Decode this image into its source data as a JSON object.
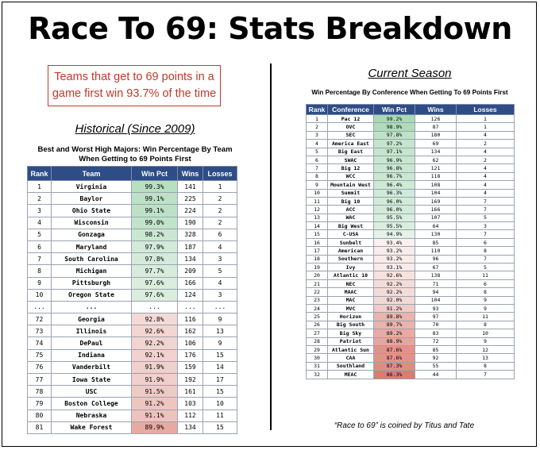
{
  "title": "Race To 69: Stats Breakdown",
  "callout": "Teams that get to 69 points in a game first win 93.7% of the time",
  "historical": {
    "heading": "Historical (Since 2009)",
    "table_title": "Best and Worst High Majors: Win Percentage By Team When Getting to 69 Points First",
    "headers": [
      "Rank",
      "Team",
      "Win Pct",
      "Wins",
      "Losses"
    ],
    "rows": [
      [
        "1",
        "Virginia",
        "99.3%",
        "141",
        "1"
      ],
      [
        "2",
        "Baylor",
        "99.1%",
        "225",
        "2"
      ],
      [
        "3",
        "Ohio State",
        "99.1%",
        "224",
        "2"
      ],
      [
        "4",
        "Wisconsin",
        "99.0%",
        "190",
        "2"
      ],
      [
        "5",
        "Gonzaga",
        "98.2%",
        "328",
        "6"
      ],
      [
        "6",
        "Maryland",
        "97.9%",
        "187",
        "4"
      ],
      [
        "7",
        "South Carolina",
        "97.8%",
        "134",
        "3"
      ],
      [
        "8",
        "Michigan",
        "97.7%",
        "209",
        "5"
      ],
      [
        "9",
        "Pittsburgh",
        "97.6%",
        "166",
        "4"
      ],
      [
        "10",
        "Oregon State",
        "97.6%",
        "124",
        "3"
      ],
      [
        "...",
        "...",
        "...",
        "...",
        "..."
      ],
      [
        "72",
        "Georgia",
        "92.8%",
        "116",
        "9"
      ],
      [
        "73",
        "Illinois",
        "92.6%",
        "162",
        "13"
      ],
      [
        "74",
        "DePaul",
        "92.2%",
        "106",
        "9"
      ],
      [
        "75",
        "Indiana",
        "92.1%",
        "176",
        "15"
      ],
      [
        "76",
        "Vanderbilt",
        "91.9%",
        "159",
        "14"
      ],
      [
        "77",
        "Iowa State",
        "91.9%",
        "192",
        "17"
      ],
      [
        "78",
        "USC",
        "91.5%",
        "161",
        "15"
      ],
      [
        "79",
        "Boston College",
        "91.2%",
        "103",
        "10"
      ],
      [
        "80",
        "Nebraska",
        "91.1%",
        "112",
        "11"
      ],
      [
        "81",
        "Wake Forest",
        "89.9%",
        "134",
        "15"
      ]
    ],
    "pct_colors": [
      "#b7dfc1",
      "#bde1c6",
      "#bde1c6",
      "#c1e3c9",
      "#cae7d1",
      "#d3ead8",
      "#d5ebda",
      "#d8ecdc",
      "#dbeede",
      "#dbeede",
      "#ffffff",
      "#f4dad7",
      "#f3d6d2",
      "#f2d3cf",
      "#f2d2ce",
      "#f1cfcb",
      "#f1cfcb",
      "#efcac5",
      "#eec6c0",
      "#edc3bd",
      "#e8a9a1"
    ]
  },
  "current": {
    "heading": "Current Season",
    "table_title": "Win Percentage By Conference When Getting To 69 Points First",
    "headers": [
      "Rank",
      "Conference",
      "Win Pct",
      "Wins",
      "Losses"
    ],
    "rows": [
      [
        "1",
        "Pac 12",
        "99.2%",
        "126",
        "1"
      ],
      [
        "2",
        "OVC",
        "98.9%",
        "87",
        "1"
      ],
      [
        "3",
        "SEC",
        "97.8%",
        "180",
        "4"
      ],
      [
        "4",
        "America East",
        "97.2%",
        "69",
        "2"
      ],
      [
        "5",
        "Big East",
        "97.1%",
        "134",
        "4"
      ],
      [
        "6",
        "SWAC",
        "96.9%",
        "62",
        "2"
      ],
      [
        "7",
        "Big 12",
        "96.8%",
        "121",
        "4"
      ],
      [
        "8",
        "WCC",
        "96.7%",
        "118",
        "4"
      ],
      [
        "9",
        "Mountain West",
        "96.4%",
        "108",
        "4"
      ],
      [
        "10",
        "Summit",
        "96.3%",
        "104",
        "4"
      ],
      [
        "11",
        "Big 10",
        "96.0%",
        "169",
        "7"
      ],
      [
        "12",
        "ACC",
        "96.0%",
        "166",
        "7"
      ],
      [
        "13",
        "WAC",
        "95.5%",
        "107",
        "5"
      ],
      [
        "14",
        "Big West",
        "95.5%",
        "64",
        "3"
      ],
      [
        "15",
        "C-USA",
        "94.9%",
        "130",
        "7"
      ],
      [
        "16",
        "Sunbelt",
        "93.4%",
        "85",
        "6"
      ],
      [
        "17",
        "American",
        "93.2%",
        "110",
        "8"
      ],
      [
        "18",
        "Southern",
        "93.2%",
        "96",
        "7"
      ],
      [
        "19",
        "Ivy",
        "93.1%",
        "67",
        "5"
      ],
      [
        "20",
        "Atlantic 10",
        "92.6%",
        "138",
        "11"
      ],
      [
        "21",
        "NEC",
        "92.2%",
        "71",
        "6"
      ],
      [
        "22",
        "MAAC",
        "92.2%",
        "94",
        "8"
      ],
      [
        "23",
        "MAC",
        "92.0%",
        "104",
        "9"
      ],
      [
        "24",
        "MVC",
        "91.2%",
        "93",
        "9"
      ],
      [
        "25",
        "Horizon",
        "89.8%",
        "97",
        "11"
      ],
      [
        "26",
        "Big South",
        "89.7%",
        "70",
        "8"
      ],
      [
        "27",
        "Big Sky",
        "89.2%",
        "83",
        "10"
      ],
      [
        "28",
        "Patriot",
        "88.9%",
        "72",
        "9"
      ],
      [
        "29",
        "Atlantic Sun",
        "87.6%",
        "85",
        "12"
      ],
      [
        "30",
        "CAA",
        "87.6%",
        "92",
        "13"
      ],
      [
        "31",
        "Southland",
        "87.3%",
        "55",
        "8"
      ],
      [
        "32",
        "MEAC",
        "86.3%",
        "44",
        "7"
      ]
    ],
    "pct_colors": [
      "#a9d9b5",
      "#b0dcbb",
      "#bde2c6",
      "#c4e5cb",
      "#c5e5cc",
      "#c8e7cf",
      "#c9e7d0",
      "#cae8d1",
      "#cee9d4",
      "#cfeadb",
      "#d2ebd8",
      "#d2ebd8",
      "#d9eedd",
      "#d9eedd",
      "#e4f2e7",
      "#fbf1f0",
      "#f9ecea",
      "#f9ecea",
      "#f9ebe9",
      "#f6e2df",
      "#f4dcd8",
      "#f4dcd8",
      "#f3d9d5",
      "#f0ccc6",
      "#eab4ad",
      "#eab3ac",
      "#e8aaa2",
      "#e7a59d",
      "#e39287",
      "#e39287",
      "#e18c81",
      "#dd7b6f"
    ]
  },
  "footnote": "“Race to 69” is coined by Titus and Tate"
}
